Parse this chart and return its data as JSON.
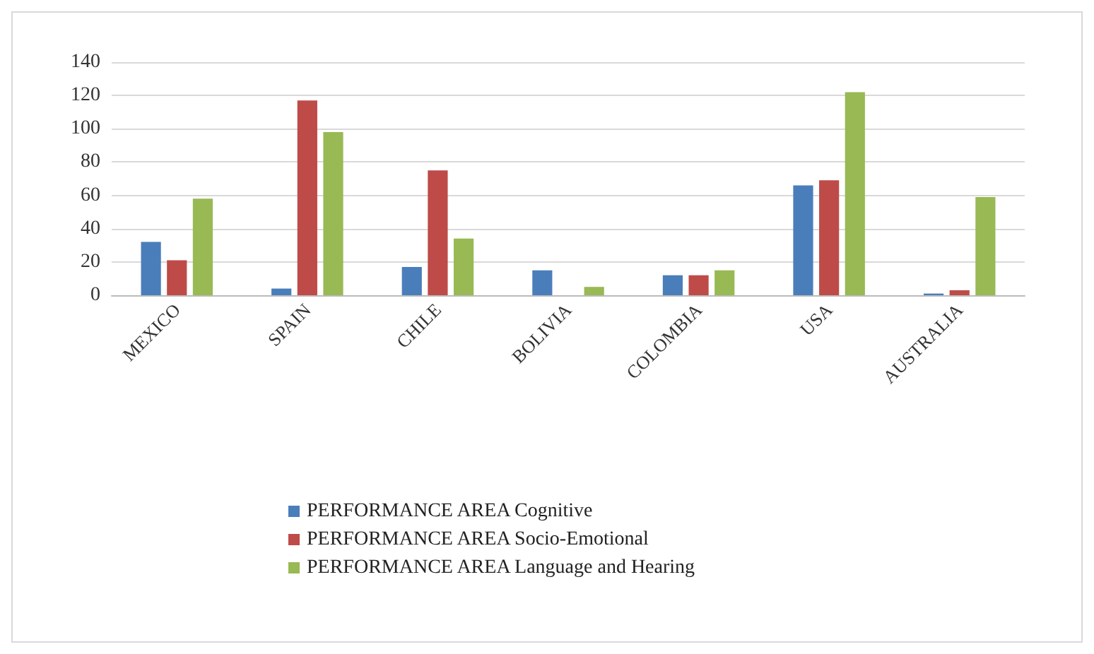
{
  "chart_data": {
    "type": "bar",
    "categories": [
      "MEXICO",
      "SPAIN",
      "CHILE",
      "BOLIVIA",
      "COLOMBIA",
      "USA",
      "AUSTRALIA"
    ],
    "series": [
      {
        "name": "PERFORMANCE AREA Cognitive",
        "color": "#4a7ebb",
        "values": [
          32,
          4,
          17,
          15,
          12,
          66,
          1
        ]
      },
      {
        "name": "PERFORMANCE AREA Socio-Emotional",
        "color": "#be4b48",
        "values": [
          21,
          117,
          75,
          0,
          12,
          69,
          3
        ]
      },
      {
        "name": "PERFORMANCE AREA Language and Hearing",
        "color": "#98b954",
        "values": [
          58,
          98,
          34,
          5,
          15,
          122,
          59
        ]
      }
    ],
    "ylim": [
      0,
      140
    ],
    "yticks": [
      0,
      20,
      40,
      60,
      80,
      100,
      120,
      140
    ],
    "grid": "y",
    "legend": "bottom"
  }
}
